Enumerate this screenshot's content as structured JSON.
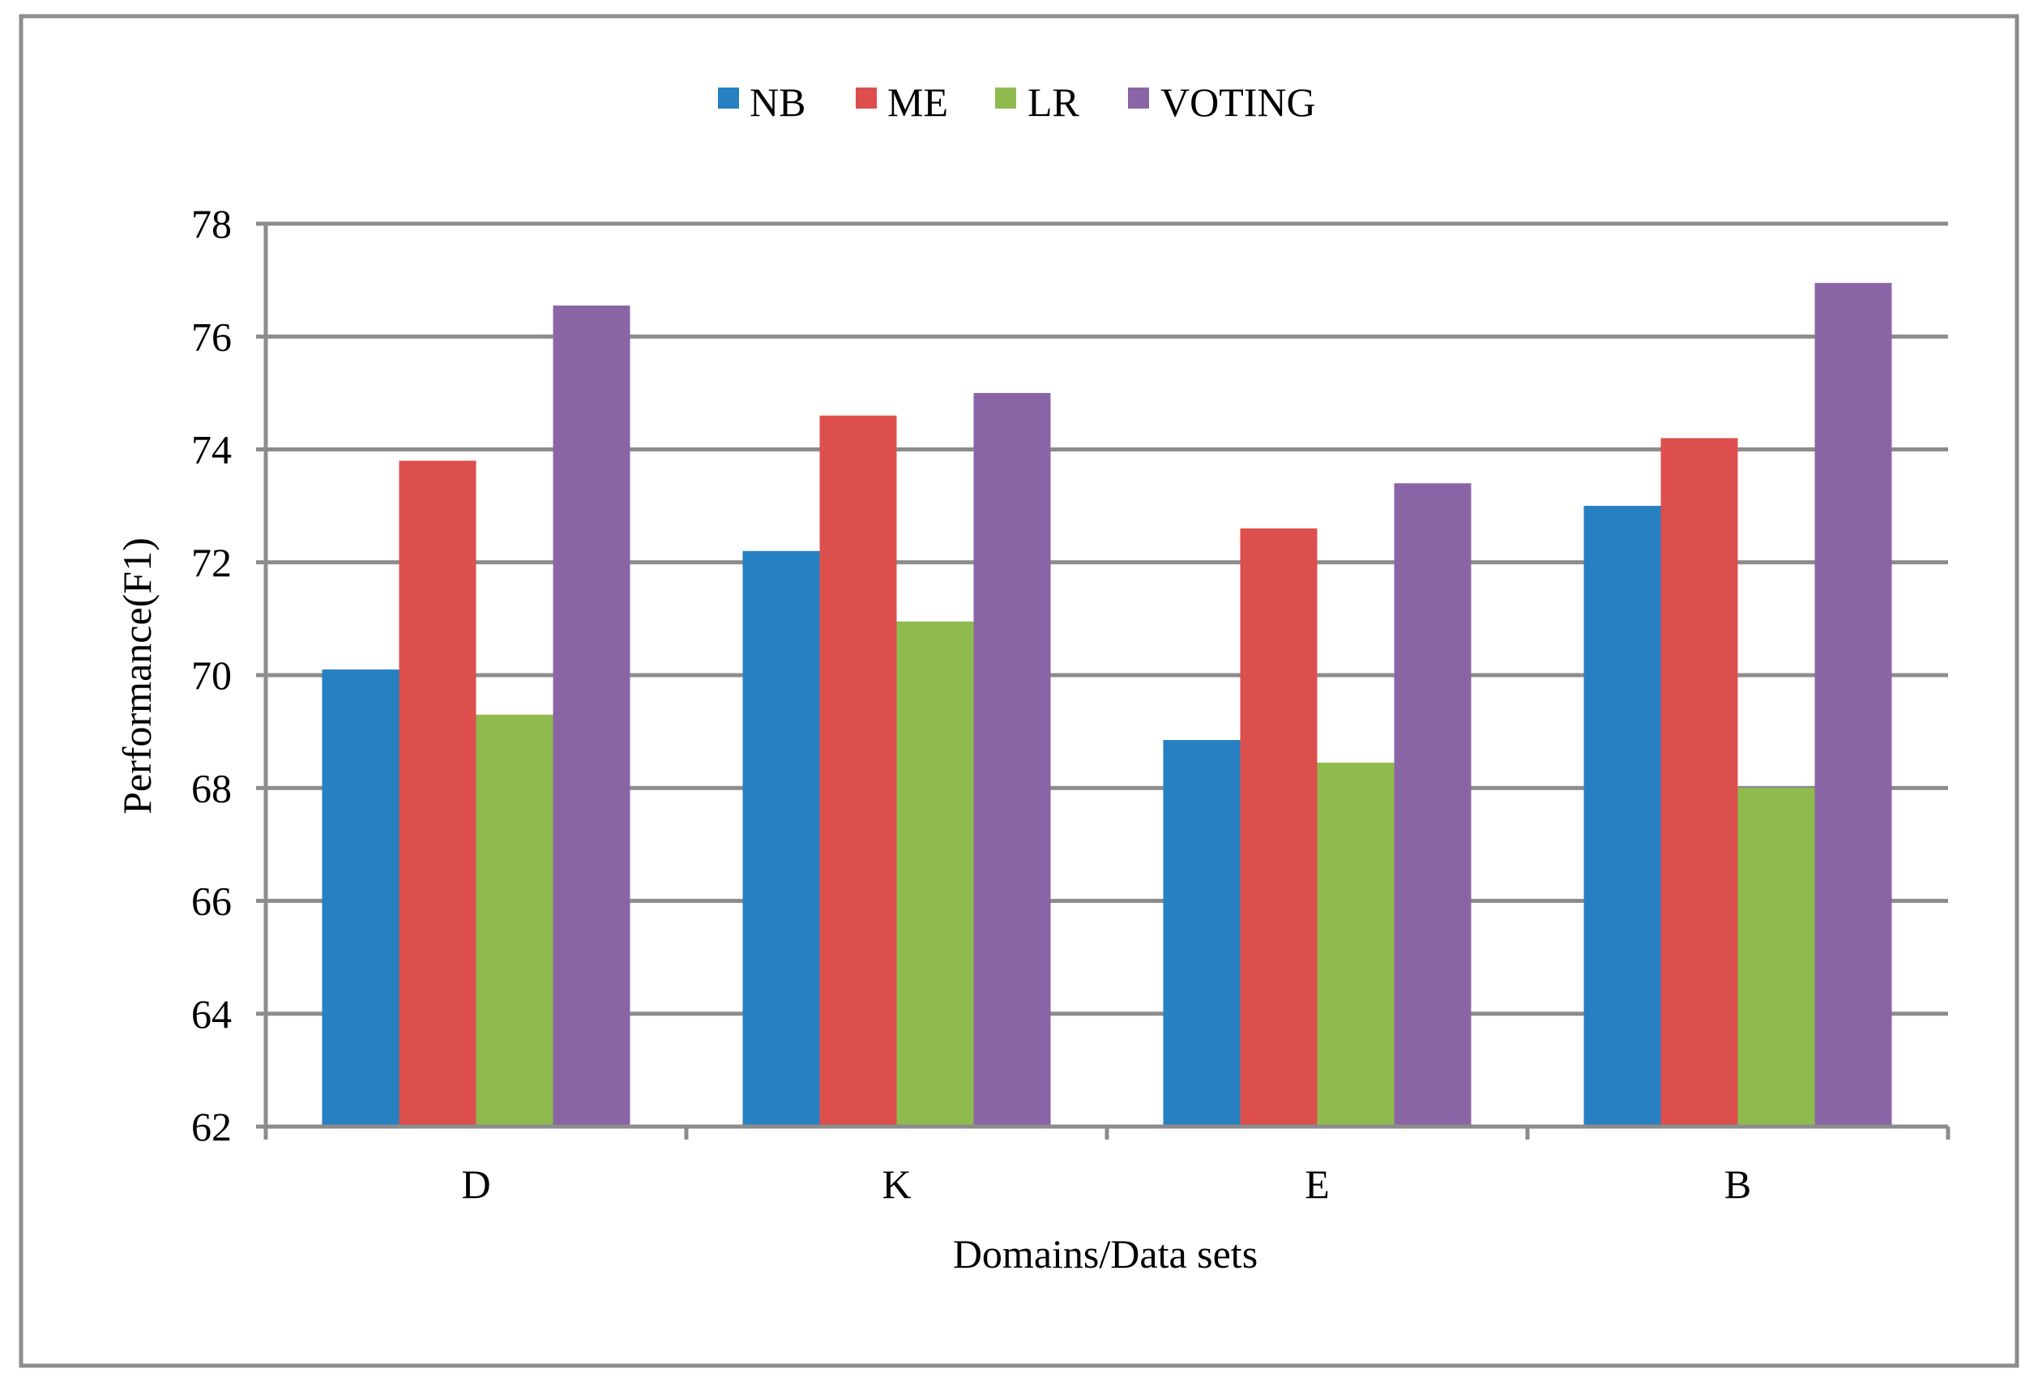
{
  "chart_data": {
    "type": "bar",
    "title": "",
    "xlabel": "Domains/Data sets",
    "ylabel": "Performance(F1)",
    "categories": [
      "D",
      "K",
      "E",
      "B"
    ],
    "ylim": [
      62,
      78
    ],
    "yticks": [
      62,
      64,
      66,
      68,
      70,
      72,
      74,
      76,
      78
    ],
    "ytick_labels": [
      "62",
      "64",
      "66",
      "68",
      "70",
      "72",
      "74",
      "76",
      "78"
    ],
    "grid": true,
    "legend_position": "top-center",
    "series": [
      {
        "name": "NB",
        "color": "#2680C2",
        "values": [
          70.1,
          72.2,
          68.85,
          73.0
        ]
      },
      {
        "name": "ME",
        "color": "#DD4F4D",
        "values": [
          73.8,
          74.6,
          72.6,
          74.2
        ]
      },
      {
        "name": "LR",
        "color": "#8FBB4E",
        "values": [
          69.3,
          70.95,
          68.45,
          68.0
        ]
      },
      {
        "name": "VOTING",
        "color": "#8A65A6",
        "values": [
          76.55,
          75.0,
          73.4,
          76.95
        ]
      }
    ]
  }
}
